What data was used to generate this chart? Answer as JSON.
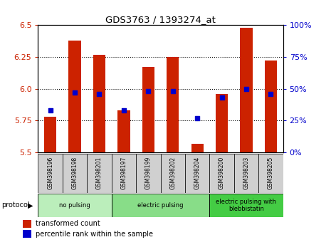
{
  "title": "GDS3763 / 1393274_at",
  "samples": [
    "GSM398196",
    "GSM398198",
    "GSM398201",
    "GSM398197",
    "GSM398199",
    "GSM398202",
    "GSM398204",
    "GSM398200",
    "GSM398203",
    "GSM398205"
  ],
  "transformed_counts": [
    5.78,
    6.38,
    6.27,
    5.83,
    6.17,
    6.25,
    5.57,
    5.96,
    6.48,
    6.22
  ],
  "percentile_ranks": [
    33,
    47,
    46,
    33,
    48,
    48,
    27,
    43,
    50,
    46
  ],
  "ylim_left": [
    5.5,
    6.5
  ],
  "ylim_right": [
    0,
    100
  ],
  "yticks_left": [
    5.5,
    5.75,
    6.0,
    6.25,
    6.5
  ],
  "yticks_right": [
    0,
    25,
    50,
    75,
    100
  ],
  "bar_color": "#cc2200",
  "dot_color": "#0000cc",
  "bar_width": 0.5,
  "groups": [
    {
      "label": "no pulsing",
      "start": 0,
      "end": 3,
      "color": "#bbeebb"
    },
    {
      "label": "electric pulsing",
      "start": 3,
      "end": 7,
      "color": "#88dd88"
    },
    {
      "label": "electric pulsing with\nblebbistatin",
      "start": 7,
      "end": 10,
      "color": "#44cc44"
    }
  ],
  "protocol_label": "protocol",
  "legend_items": [
    {
      "label": "transformed count",
      "color": "#cc2200"
    },
    {
      "label": "percentile rank within the sample",
      "color": "#0000cc"
    }
  ],
  "plot_bg_color": "#ffffff",
  "label_box_color": "#d0d0d0",
  "figsize": [
    4.65,
    3.54
  ],
  "dpi": 100
}
